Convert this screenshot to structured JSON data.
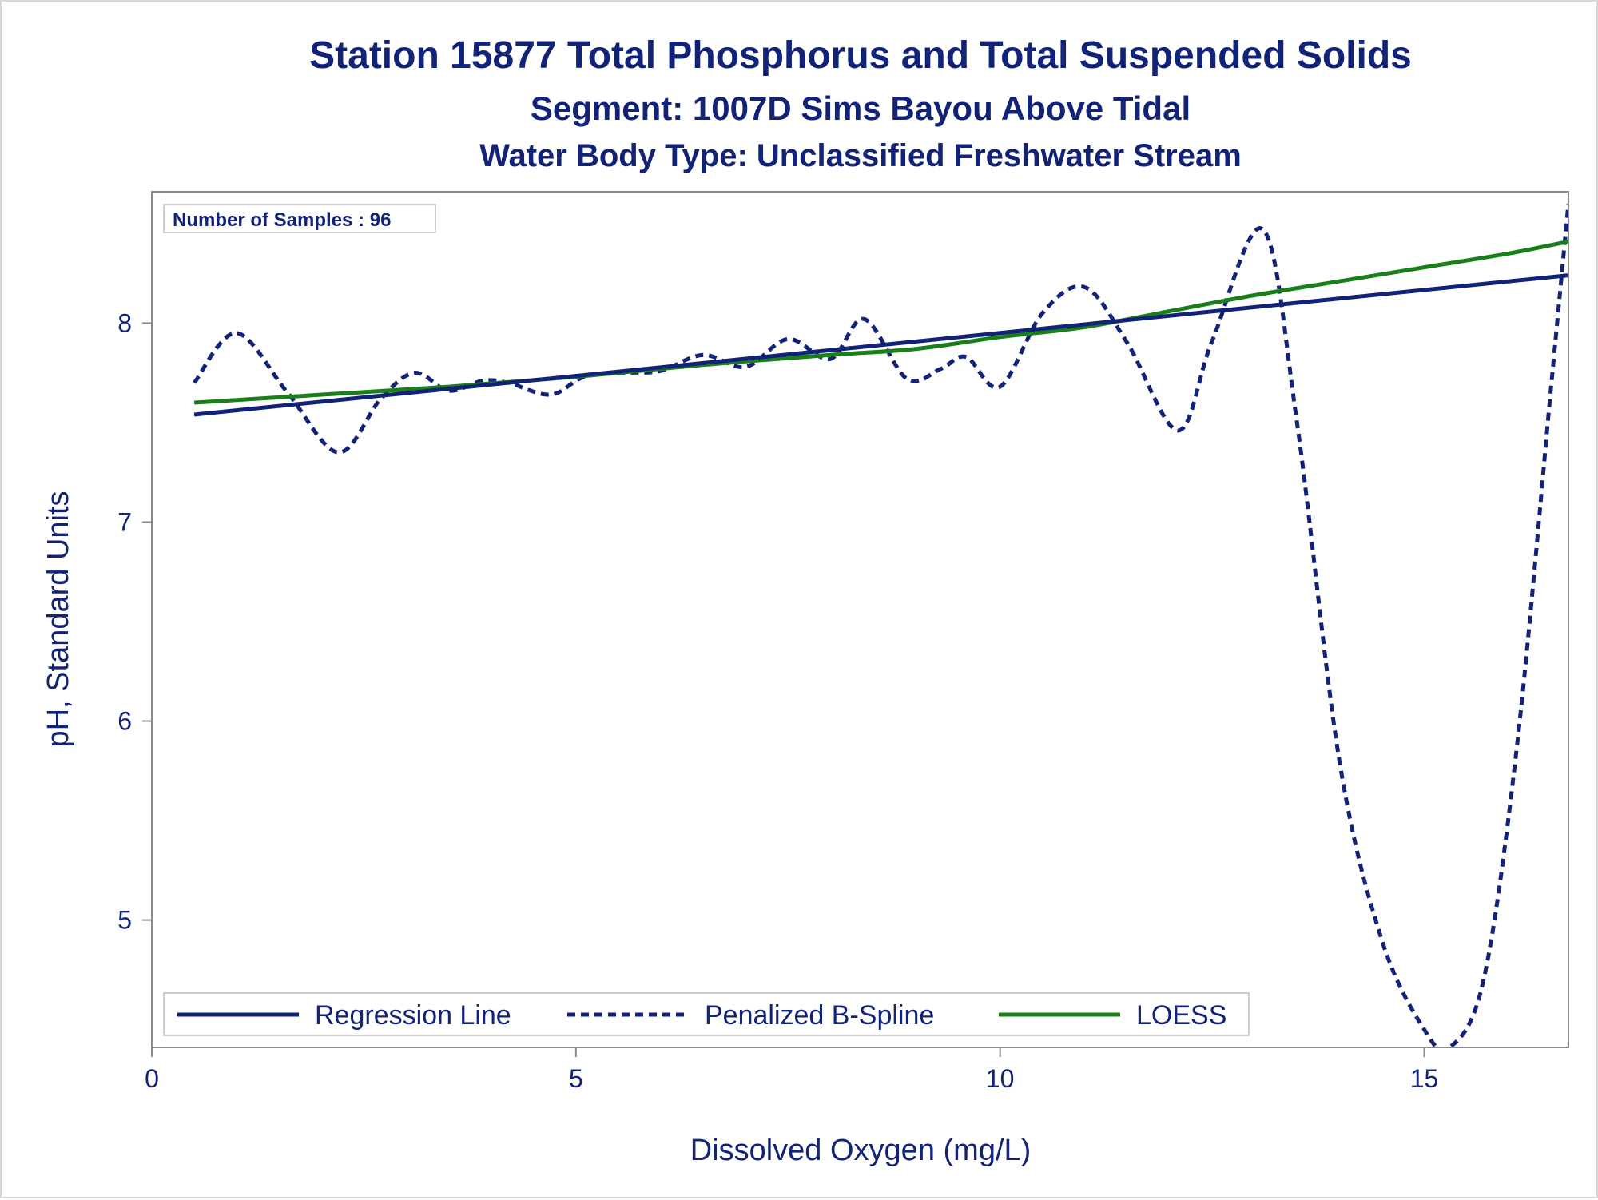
{
  "titles": {
    "line1": "Station 15877  Total Phosphorus and Total Suspended Solids",
    "line2": "Segment: 1007D  Sims Bayou Above Tidal",
    "line3": "Water Body Type: Unclassified Freshwater Stream"
  },
  "inset": {
    "text": "Number of Samples : 96"
  },
  "colors": {
    "text": "#112277",
    "regression": "#112277",
    "spline": "#112277",
    "loess": "#1a7f1a",
    "frame": "#8a8a8a"
  },
  "chart_data": {
    "type": "line",
    "xlabel": "Dissolved Oxygen (mg/L)",
    "ylabel": "pH, Standard Units",
    "xlim": [
      0,
      16.7
    ],
    "ylim": [
      4.36,
      8.66
    ],
    "xticks": [
      0,
      5,
      10,
      15
    ],
    "yticks": [
      5,
      6,
      7,
      8
    ],
    "xtick_labels": [
      "0",
      "5",
      "10",
      "15"
    ],
    "ytick_labels": [
      "5",
      "6",
      "7",
      "8"
    ],
    "grid": false,
    "legend_placement": "bottom-inside",
    "series": [
      {
        "name": "Regression Line",
        "style": "solid",
        "x": [
          0.5,
          16.7
        ],
        "y": [
          7.54,
          8.24
        ]
      },
      {
        "name": "Penalized B-Spline",
        "style": "dashed",
        "x": [
          0.5,
          1.0,
          1.6,
          2.2,
          2.7,
          3.1,
          3.5,
          3.9,
          4.2,
          4.7,
          5.1,
          5.6,
          6.0,
          6.5,
          7.0,
          7.5,
          8.0,
          8.4,
          8.9,
          9.3,
          9.6,
          10.0,
          10.5,
          11.0,
          11.5,
          12.1,
          12.5,
          13.1,
          13.5,
          14.0,
          14.5,
          15.0,
          15.3,
          15.7,
          16.1,
          16.5,
          16.7
        ],
        "y": [
          7.7,
          7.95,
          7.65,
          7.35,
          7.62,
          7.75,
          7.66,
          7.71,
          7.7,
          7.64,
          7.73,
          7.75,
          7.76,
          7.84,
          7.78,
          7.92,
          7.82,
          8.02,
          7.72,
          7.77,
          7.83,
          7.68,
          8.05,
          8.18,
          7.9,
          7.46,
          7.91,
          8.47,
          7.5,
          5.8,
          4.9,
          4.45,
          4.36,
          4.7,
          5.9,
          7.7,
          8.6
        ]
      },
      {
        "name": "LOESS",
        "style": "solid",
        "x": [
          0.5,
          2.0,
          3.5,
          5.0,
          6.5,
          8.0,
          9.0,
          10.0,
          11.0,
          12.0,
          13.0,
          14.0,
          15.0,
          16.0,
          16.7
        ],
        "y": [
          7.6,
          7.64,
          7.68,
          7.73,
          7.79,
          7.84,
          7.87,
          7.93,
          7.98,
          8.06,
          8.14,
          8.21,
          8.28,
          8.35,
          8.41
        ]
      }
    ]
  }
}
